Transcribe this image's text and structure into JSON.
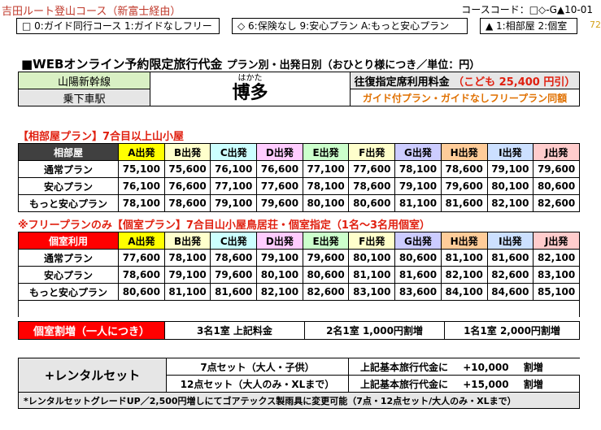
{
  "header": {
    "course_title": "吉田ルート登山コース（新富士経由）",
    "course_code": "コースコード：□◇-G▲10-01",
    "page_number": "72"
  },
  "legend": {
    "guide": "□ 0:ガイド同行コース  1:ガイドなしフリー",
    "plan": "◇ 6:保険なし 9:安心プラン A:もっと安心プラン",
    "room": "▲ 1:相部屋 2:個室"
  },
  "heading": {
    "main": "■WEBオンライン予約限定旅行代金",
    "sub": "プラン別・出発日別（おひとり様につき／単位：円）"
  },
  "station": {
    "line_label": "山陽新幹線",
    "boarding_label": "乗下車駅",
    "station_reading": "はかた",
    "station_name": "博多",
    "fare_label": "往復指定席利用料金",
    "child_fare": "（こども  25,400  円引）",
    "note": "ガイド付プラン・ガイドなしフリープラン同額"
  },
  "shared": {
    "title": "【相部屋プラン】7合目以上山小屋",
    "header_label": "相部屋",
    "columns": [
      "A出発",
      "B出発",
      "C出発",
      "D出発",
      "E出発",
      "F出発",
      "G出発",
      "H出発",
      "I出発",
      "J出発"
    ],
    "rows": [
      {
        "label": "通常プラン",
        "values": [
          "75,100",
          "75,600",
          "76,100",
          "76,600",
          "77,100",
          "77,600",
          "78,100",
          "78,600",
          "79,100",
          "79,600"
        ]
      },
      {
        "label": "安心プラン",
        "values": [
          "76,100",
          "76,600",
          "77,100",
          "77,600",
          "78,100",
          "78,600",
          "79,100",
          "79,600",
          "80,100",
          "80,600"
        ]
      },
      {
        "label": "もっと安心プラン",
        "values": [
          "78,100",
          "78,600",
          "79,100",
          "79,600",
          "80,100",
          "80,600",
          "81,100",
          "81,600",
          "82,100",
          "82,600"
        ]
      }
    ]
  },
  "private": {
    "title": "※フリープランのみ【個室プラン】7合目山小屋鳥居荘・個室指定（1名～3名用個室）",
    "header_label": "個室利用",
    "columns": [
      "A出発",
      "B出発",
      "C出発",
      "D出発",
      "E出発",
      "F出発",
      "G出発",
      "H出発",
      "I出発",
      "J出発"
    ],
    "rows": [
      {
        "label": "通常プラン",
        "values": [
          "77,600",
          "78,100",
          "78,600",
          "79,100",
          "79,600",
          "80,100",
          "80,600",
          "81,100",
          "81,600",
          "82,100"
        ]
      },
      {
        "label": "安心プラン",
        "values": [
          "78,600",
          "79,100",
          "79,600",
          "80,100",
          "80,600",
          "81,100",
          "81,600",
          "82,100",
          "82,600",
          "83,100"
        ]
      },
      {
        "label": "もっと安心プラン",
        "values": [
          "80,600",
          "81,100",
          "81,600",
          "82,100",
          "82,600",
          "83,100",
          "83,600",
          "84,100",
          "84,600",
          "85,100"
        ]
      }
    ]
  },
  "surcharge": {
    "label": "個室割増（一人につき）",
    "three": "3名1室 上記料金",
    "two": "2名1室 1,000円割増",
    "one": "1名1室 2,000円割増"
  },
  "rental": {
    "label": "+レンタルセット",
    "set7_name": "7点セット（大人・子供）",
    "set7_desc": "上記基本旅行代金に",
    "set7_price": "+10,000",
    "set7_unit": "割増",
    "set12_name": "12点セット（大人のみ・XLまで）",
    "set12_desc": "上記基本旅行代金に",
    "set12_price": "+15,000",
    "set12_unit": "割増",
    "note": "*レンタルセットグレードUP／2,500円増しにてゴアテックス製雨具に変更可能（7点・12点セット/大人のみ・XLまで）"
  }
}
